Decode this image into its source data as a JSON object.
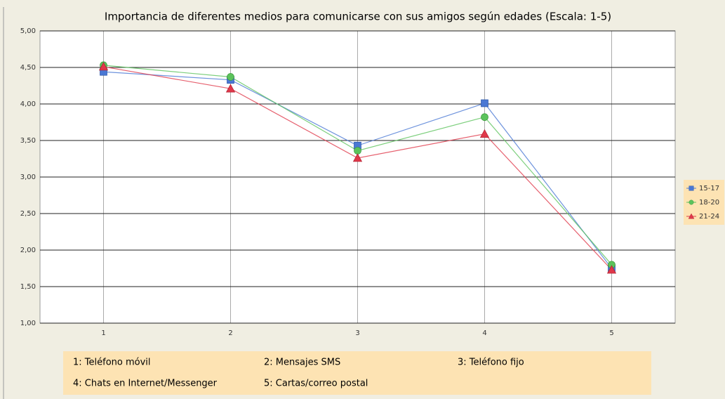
{
  "chart_data": {
    "type": "line",
    "title": "Importancia de diferentes medios para comunicarse con sus amigos según edades (Escala: 1-5)",
    "categories": [
      "1",
      "2",
      "3",
      "4",
      "5"
    ],
    "series": [
      {
        "name": "15-17",
        "color": "#4a78d4",
        "marker": "square",
        "values": [
          4.44,
          4.33,
          3.43,
          4.01,
          1.75
        ]
      },
      {
        "name": "18-20",
        "color": "#5cc35c",
        "marker": "circle",
        "values": [
          4.53,
          4.37,
          3.36,
          3.82,
          1.8
        ]
      },
      {
        "name": "21-24",
        "color": "#e0384a",
        "marker": "triangle",
        "values": [
          4.51,
          4.21,
          3.26,
          3.59,
          1.73
        ]
      }
    ],
    "ylim": [
      1,
      5
    ],
    "yticks": [
      {
        "value": 1,
        "label": "1,00"
      },
      {
        "value": 1.5,
        "label": "1,50"
      },
      {
        "value": 2,
        "label": "2,00"
      },
      {
        "value": 2.5,
        "label": "2,50"
      },
      {
        "value": 3,
        "label": "3,00"
      },
      {
        "value": 3.5,
        "label": "3,50"
      },
      {
        "value": 4,
        "label": "4,00"
      },
      {
        "value": 4.5,
        "label": "4,50"
      },
      {
        "value": 5,
        "label": "5,00"
      }
    ],
    "grid": true,
    "legend": "right",
    "notes": [
      "1: Teléfono móvil",
      "2: Mensajes SMS",
      "3: Teléfono fijo",
      "4: Chats en Internet/Messenger",
      "5: Cartas/correo postal"
    ]
  }
}
